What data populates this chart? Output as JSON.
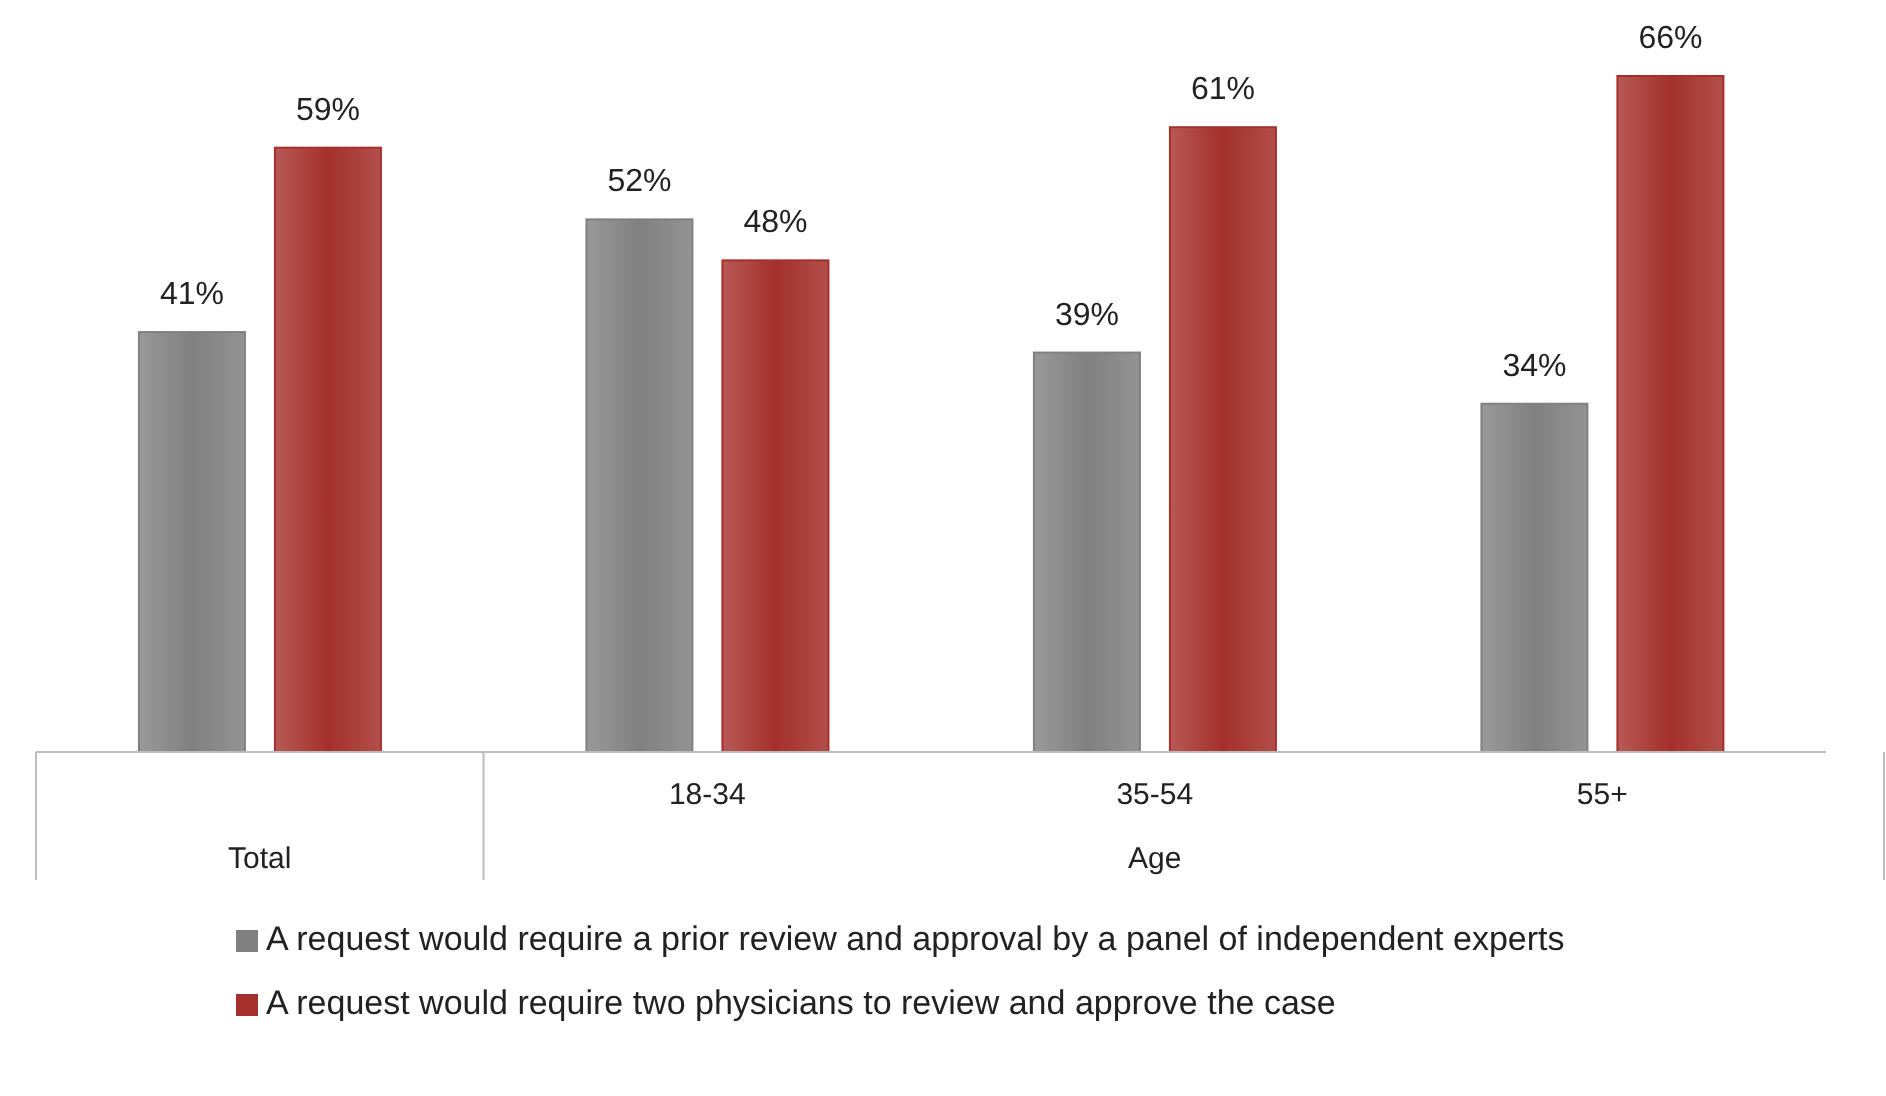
{
  "chart_data": {
    "type": "bar",
    "categories": [
      null,
      "18-34",
      "35-54",
      "55+"
    ],
    "series": [
      {
        "name": "A request would require a prior review and approval by a panel of independent experts",
        "color": "#808080",
        "values": [
          41,
          52,
          39,
          34
        ],
        "value_labels": [
          "41%",
          "52%",
          "39%",
          "34%"
        ]
      },
      {
        "name": "A request would require two physicians to review and approve the case",
        "color": "#a5302b",
        "values": [
          59,
          48,
          61,
          66
        ],
        "value_labels": [
          "59%",
          "48%",
          "61%",
          "66%"
        ]
      }
    ],
    "annotations": [
      "Total",
      "Age"
    ],
    "grid": false,
    "legend": "bottom"
  }
}
